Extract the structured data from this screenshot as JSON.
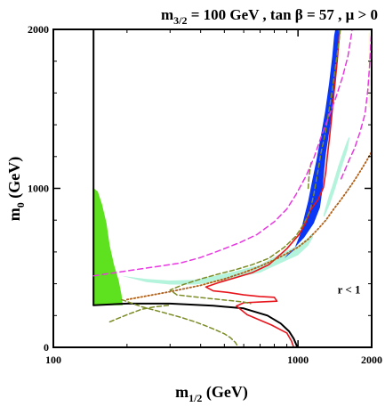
{
  "chart_data": {
    "type": "line",
    "title": "m3/2 = 100 GeV , tan β = 57 ,  μ > 0",
    "title_parts": {
      "m": "m",
      "sub": "3/2",
      "rest": " = 100 GeV , tan β = 57 ,  μ > 0"
    },
    "xlabel": "m1/2 (GeV)",
    "xlabel_parts": {
      "m": "m",
      "sub": "1/2",
      "rest": " (GeV)"
    },
    "ylabel": "m0 (GeV)",
    "ylabel_parts": {
      "m": "m",
      "sub": "0",
      "rest": " (GeV)"
    },
    "xlim": [
      100,
      2000
    ],
    "ylim": [
      0,
      2000
    ],
    "x_scale": "log",
    "x_ticks": [
      {
        "value": 100,
        "label": "100"
      },
      {
        "value": 1000,
        "label": "1000"
      },
      {
        "value": 2000,
        "label": "2000"
      }
    ],
    "y_ticks": [
      {
        "value": 0,
        "label": "0"
      },
      {
        "value": 1000,
        "label": "1000"
      },
      {
        "value": 2000,
        "label": "2000"
      }
    ],
    "annotation": {
      "text": "r < 1",
      "x": 1450,
      "y": 340
    },
    "colors": {
      "green": "#5ee11e",
      "blue": "#0a36f5",
      "mint": "#b4f3dc",
      "red": "#e8141c",
      "olive": "#7c8c26",
      "magenta": "#e838e0",
      "brown": "#b06018",
      "yellow": "#fff6b8",
      "black": "#000000"
    },
    "series": [
      {
        "kind": "fill",
        "color": "green",
        "points": [
          [
            145,
            265
          ],
          [
            145,
            1005
          ],
          [
            152,
            980
          ],
          [
            158,
            900
          ],
          [
            165,
            780
          ],
          [
            170,
            640
          ],
          [
            177,
            520
          ],
          [
            185,
            420
          ],
          [
            190,
            330
          ],
          [
            192,
            265
          ]
        ]
      },
      {
        "kind": "fill",
        "color": "mint",
        "points": [
          [
            190,
            450
          ],
          [
            240,
            410
          ],
          [
            300,
            395
          ],
          [
            380,
            395
          ],
          [
            460,
            410
          ],
          [
            560,
            440
          ],
          [
            700,
            470
          ],
          [
            850,
            530
          ],
          [
            1000,
            580
          ],
          [
            1100,
            640
          ],
          [
            1150,
            690
          ],
          [
            1150,
            720
          ],
          [
            1100,
            690
          ],
          [
            1000,
            640
          ],
          [
            850,
            590
          ],
          [
            700,
            520
          ],
          [
            560,
            480
          ],
          [
            460,
            450
          ],
          [
            380,
            425
          ],
          [
            300,
            420
          ],
          [
            240,
            430
          ]
        ]
      },
      {
        "kind": "fill",
        "color": "mint",
        "points": [
          [
            1280,
            820
          ],
          [
            1350,
            900
          ],
          [
            1420,
            1000
          ],
          [
            1500,
            1120
          ],
          [
            1560,
            1200
          ],
          [
            1590,
            1240
          ],
          [
            1610,
            1280
          ],
          [
            1625,
            1320
          ],
          [
            1610,
            1320
          ],
          [
            1580,
            1290
          ],
          [
            1530,
            1230
          ],
          [
            1460,
            1140
          ],
          [
            1390,
            1030
          ],
          [
            1330,
            940
          ],
          [
            1290,
            870
          ],
          [
            1270,
            830
          ]
        ]
      },
      {
        "kind": "fill",
        "color": "blue",
        "points": [
          [
            880,
            560
          ],
          [
            960,
            610
          ],
          [
            1020,
            710
          ],
          [
            1060,
            820
          ],
          [
            1100,
            920
          ],
          [
            1140,
            1040
          ],
          [
            1190,
            1180
          ],
          [
            1240,
            1330
          ],
          [
            1290,
            1480
          ],
          [
            1340,
            1660
          ],
          [
            1380,
            1830
          ],
          [
            1405,
            1960
          ],
          [
            1420,
            2000
          ],
          [
            1465,
            2000
          ],
          [
            1470,
            1960
          ],
          [
            1455,
            1820
          ],
          [
            1420,
            1660
          ],
          [
            1380,
            1500
          ],
          [
            1340,
            1350
          ],
          [
            1300,
            1220
          ],
          [
            1280,
            1120
          ],
          [
            1260,
            1000
          ],
          [
            1230,
            880
          ],
          [
            1160,
            780
          ],
          [
            1060,
            690
          ],
          [
            960,
            620
          ],
          [
            900,
            580
          ]
        ]
      },
      {
        "kind": "fill",
        "color": "yellow",
        "points": [
          [
            1945,
            1510
          ],
          [
            1965,
            1510
          ],
          [
            1965,
            1980
          ],
          [
            1945,
            1980
          ]
        ]
      },
      {
        "kind": "line",
        "color": "black",
        "width": 2,
        "points": [
          [
            146,
            2000
          ],
          [
            146,
            265
          ]
        ]
      },
      {
        "kind": "line",
        "color": "black",
        "width": 2,
        "points": [
          [
            146,
            265
          ],
          [
            200,
            275
          ],
          [
            300,
            275
          ],
          [
            450,
            262
          ],
          [
            600,
            245
          ],
          [
            750,
            200
          ],
          [
            850,
            150
          ],
          [
            920,
            100
          ],
          [
            960,
            55
          ],
          [
            985,
            15
          ],
          [
            990,
            0
          ]
        ]
      },
      {
        "kind": "line",
        "color": "red",
        "width": 1.6,
        "points": [
          [
            1480,
            2000
          ],
          [
            1470,
            1930
          ],
          [
            1445,
            1800
          ],
          [
            1420,
            1680
          ],
          [
            1395,
            1560
          ],
          [
            1370,
            1440
          ],
          [
            1345,
            1320
          ],
          [
            1320,
            1210
          ],
          [
            1300,
            1110
          ],
          [
            1270,
            1005
          ],
          [
            1210,
            930
          ],
          [
            1120,
            860
          ],
          [
            1080,
            790
          ],
          [
            1010,
            710
          ],
          [
            900,
            620
          ],
          [
            760,
            520
          ],
          [
            650,
            470
          ],
          [
            560,
            440
          ],
          [
            480,
            410
          ],
          [
            420,
            380
          ],
          [
            450,
            355
          ],
          [
            520,
            345
          ],
          [
            600,
            330
          ],
          [
            700,
            320
          ],
          [
            800,
            315
          ],
          [
            820,
            290
          ],
          [
            700,
            285
          ],
          [
            600,
            280
          ],
          [
            560,
            260
          ],
          [
            620,
            205
          ],
          [
            780,
            140
          ],
          [
            900,
            90
          ],
          [
            940,
            40
          ],
          [
            960,
            0
          ]
        ]
      },
      {
        "kind": "line",
        "color": "olive",
        "width": 1.5,
        "dash": "5,3",
        "points": [
          [
            1490,
            2000
          ],
          [
            1475,
            1940
          ],
          [
            1450,
            1860
          ],
          [
            1420,
            1760
          ],
          [
            1380,
            1620
          ],
          [
            1330,
            1460
          ],
          [
            1290,
            1340
          ],
          [
            1240,
            1220
          ],
          [
            1200,
            1090
          ],
          [
            1160,
            960
          ],
          [
            1120,
            860
          ],
          [
            1060,
            780
          ],
          [
            980,
            700
          ],
          [
            880,
            630
          ],
          [
            760,
            560
          ],
          [
            650,
            520
          ],
          [
            560,
            490
          ],
          [
            470,
            460
          ],
          [
            400,
            430
          ],
          [
            340,
            395
          ],
          [
            300,
            360
          ],
          [
            320,
            330
          ],
          [
            420,
            310
          ],
          [
            520,
            295
          ],
          [
            600,
            285
          ],
          [
            640,
            275
          ]
        ]
      },
      {
        "kind": "line",
        "color": "olive",
        "width": 1.5,
        "dash": "5,3",
        "points": [
          [
            190,
            300
          ],
          [
            230,
            255
          ],
          [
            280,
            220
          ],
          [
            330,
            190
          ],
          [
            380,
            160
          ],
          [
            420,
            135
          ],
          [
            460,
            110
          ],
          [
            500,
            85
          ],
          [
            530,
            60
          ],
          [
            555,
            30
          ],
          [
            570,
            0
          ]
        ]
      },
      {
        "kind": "line",
        "color": "olive",
        "width": 1.5,
        "dash": "5,3",
        "points": [
          [
            170,
            160
          ],
          [
            200,
            205
          ],
          [
            230,
            240
          ],
          [
            260,
            255
          ],
          [
            300,
            265
          ]
        ]
      },
      {
        "kind": "line",
        "color": "olive",
        "width": 1.5,
        "dash": "5,3",
        "points": [
          [
            1100,
            1000
          ],
          [
            1110,
            1080
          ],
          [
            1130,
            1160
          ]
        ]
      },
      {
        "kind": "line",
        "color": "magenta",
        "width": 1.5,
        "dash": "6,4",
        "points": [
          [
            146,
            450
          ],
          [
            180,
            470
          ],
          [
            220,
            490
          ],
          [
            270,
            510
          ],
          [
            330,
            530
          ],
          [
            400,
            565
          ],
          [
            480,
            610
          ],
          [
            580,
            660
          ],
          [
            680,
            710
          ],
          [
            800,
            790
          ],
          [
            900,
            870
          ],
          [
            980,
            960
          ],
          [
            1080,
            1080
          ],
          [
            1160,
            1190
          ],
          [
            1240,
            1320
          ],
          [
            1320,
            1430
          ],
          [
            1420,
            1560
          ],
          [
            1520,
            1700
          ],
          [
            1600,
            1830
          ],
          [
            1650,
            1960
          ],
          [
            1665,
            2000
          ]
        ]
      },
      {
        "kind": "line",
        "color": "magenta",
        "width": 1.5,
        "dash": "6,4",
        "points": [
          [
            1500,
            1060
          ],
          [
            1560,
            1120
          ],
          [
            1620,
            1180
          ],
          [
            1700,
            1250
          ],
          [
            1790,
            1350
          ],
          [
            1880,
            1470
          ],
          [
            1930,
            1620
          ],
          [
            1965,
            1790
          ],
          [
            1990,
            1950
          ],
          [
            2000,
            1980
          ]
        ]
      },
      {
        "kind": "line",
        "color": "brown",
        "width": 1.8,
        "dash": "1.5,2.5",
        "points": [
          [
            200,
            300
          ],
          [
            300,
            350
          ],
          [
            400,
            390
          ],
          [
            500,
            430
          ],
          [
            600,
            470
          ],
          [
            700,
            510
          ],
          [
            800,
            550
          ],
          [
            900,
            590
          ],
          [
            1000,
            630
          ],
          [
            1100,
            680
          ],
          [
            1200,
            740
          ],
          [
            1300,
            800
          ],
          [
            1400,
            870
          ],
          [
            1500,
            930
          ],
          [
            1600,
            990
          ],
          [
            1700,
            1050
          ],
          [
            1800,
            1110
          ],
          [
            1900,
            1170
          ],
          [
            2000,
            1230
          ]
        ]
      }
    ]
  }
}
